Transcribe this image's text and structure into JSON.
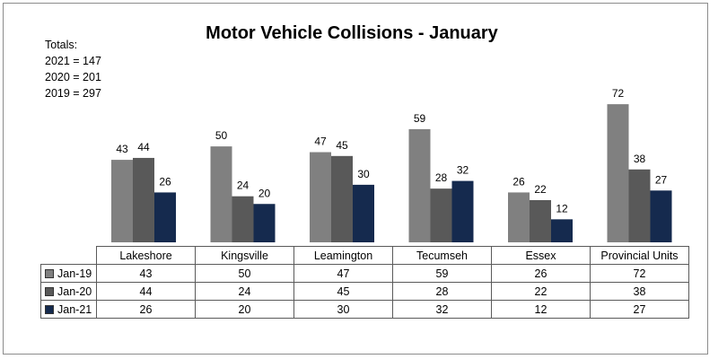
{
  "chart_data": {
    "type": "bar",
    "title": "Motor Vehicle Collisions - January",
    "categories": [
      "Lakeshore",
      "Kingsville",
      "Leamington",
      "Tecumseh",
      "Essex",
      "Provincial Units"
    ],
    "series": [
      {
        "name": "Jan-19",
        "color": "#808080",
        "values": [
          43,
          50,
          47,
          59,
          26,
          72
        ]
      },
      {
        "name": "Jan-20",
        "color": "#595959",
        "values": [
          44,
          24,
          45,
          28,
          22,
          38
        ]
      },
      {
        "name": "Jan-21",
        "color": "#152a4e",
        "values": [
          26,
          20,
          30,
          32,
          12,
          27
        ]
      }
    ],
    "ylim": [
      0,
      80
    ],
    "grid": false,
    "data_labels": true,
    "totals": {
      "heading": "Totals:",
      "lines": [
        "2021 = 147",
        "2020 = 201",
        "2019 = 297"
      ]
    }
  }
}
